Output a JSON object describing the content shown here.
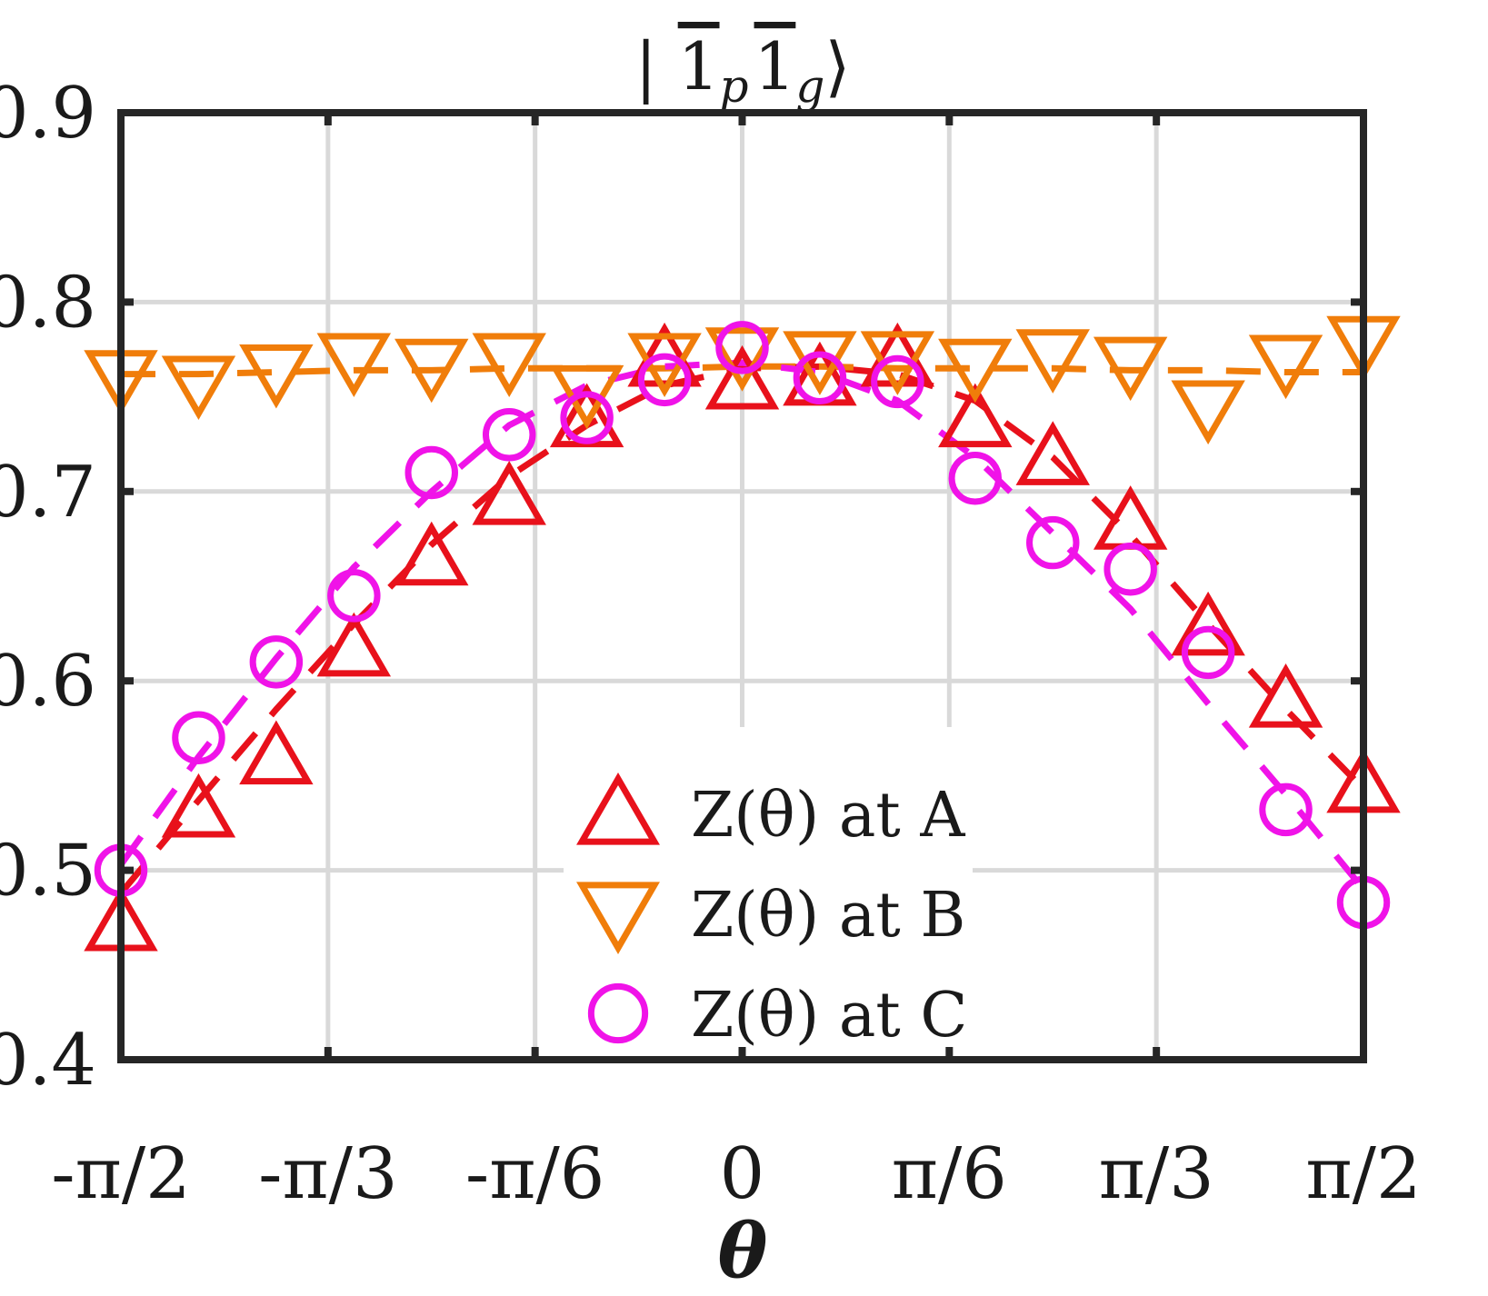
{
  "chart_data": {
    "type": "scatter",
    "title": "| 1̄p 1̄g ⟩",
    "title_parts": {
      "prefix": "| ",
      "sym1": "1",
      "sub1": "p",
      "sym2": "1",
      "sub2": "g",
      "suffix": "⟩"
    },
    "xlabel": "θ",
    "ylabel": "",
    "xlim": [
      -1.5708,
      1.5708
    ],
    "ylim": [
      0.4,
      0.9
    ],
    "grid": true,
    "legend_position": "bottom-right",
    "x_ticks": [
      {
        "value": -1.5708,
        "label": "-π/2"
      },
      {
        "value": -1.0472,
        "label": "-π/3"
      },
      {
        "value": -0.5236,
        "label": "-π/6"
      },
      {
        "value": 0,
        "label": "0"
      },
      {
        "value": 0.5236,
        "label": "π/6"
      },
      {
        "value": 1.0472,
        "label": "π/3"
      },
      {
        "value": 1.5708,
        "label": "π/2"
      }
    ],
    "y_ticks": [
      {
        "value": 0.4,
        "label": "0.4"
      },
      {
        "value": 0.5,
        "label": "0.5"
      },
      {
        "value": 0.6,
        "label": "0.6"
      },
      {
        "value": 0.7,
        "label": "0.7"
      },
      {
        "value": 0.8,
        "label": "0.8"
      },
      {
        "value": 0.9,
        "label": "0.9"
      }
    ],
    "x": [
      -1.5708,
      -1.3744,
      -1.1781,
      -0.9817,
      -0.7854,
      -0.589,
      -0.3927,
      -0.1963,
      0,
      0.1963,
      0.3927,
      0.589,
      0.7854,
      0.9817,
      1.1781,
      1.3744,
      1.5708
    ],
    "series": [
      {
        "name": "Z(θ) at A",
        "marker": "triangle-up",
        "color": "#e8111b",
        "values": [
          0.472,
          0.532,
          0.56,
          0.617,
          0.665,
          0.697,
          0.738,
          0.77,
          0.758,
          0.76,
          0.77,
          0.738,
          0.718,
          0.684,
          0.628,
          0.59,
          0.545
        ],
        "fit": [
          0.488,
          0.537,
          0.585,
          0.63,
          0.672,
          0.708,
          0.735,
          0.756,
          0.765,
          0.766,
          0.762,
          0.748,
          0.718,
          0.677,
          0.63,
          0.585,
          0.543
        ]
      },
      {
        "name": "Z(θ) at B",
        "marker": "triangle-down",
        "color": "#f07d0a",
        "values": [
          0.76,
          0.757,
          0.763,
          0.769,
          0.766,
          0.769,
          0.752,
          0.769,
          0.772,
          0.77,
          0.77,
          0.766,
          0.771,
          0.767,
          0.744,
          0.768,
          0.778
        ],
        "fit": [
          0.762,
          0.762,
          0.763,
          0.764,
          0.764,
          0.765,
          0.765,
          0.765,
          0.766,
          0.766,
          0.765,
          0.765,
          0.765,
          0.764,
          0.764,
          0.763,
          0.763
        ]
      },
      {
        "name": "Z(θ) at C",
        "marker": "circle",
        "color": "#f013e8",
        "values": [
          0.5,
          0.57,
          0.61,
          0.645,
          0.71,
          0.73,
          0.739,
          0.759,
          0.776,
          0.76,
          0.758,
          0.707,
          0.673,
          0.659,
          0.615,
          0.532,
          0.483
        ],
        "fit": [
          0.503,
          0.56,
          0.612,
          0.66,
          0.7,
          0.735,
          0.756,
          0.766,
          0.768,
          0.763,
          0.748,
          0.718,
          0.678,
          0.638,
          0.588,
          0.54,
          0.49
        ]
      }
    ]
  }
}
